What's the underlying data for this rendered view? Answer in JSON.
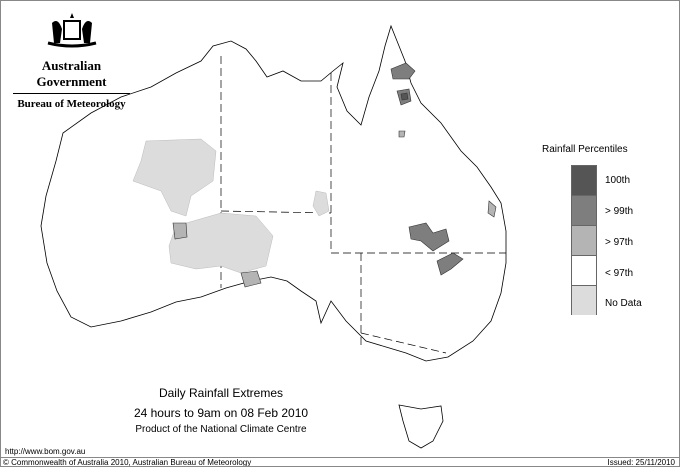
{
  "header": {
    "government": "Australian Government",
    "bureau": "Bureau of Meteorology",
    "logo": "Commonwealth coat of arms"
  },
  "title": {
    "line1": "Daily Rainfall Extremes",
    "line2": "24 hours to 9am on 08 Feb 2010",
    "line3": "Product of the National Climate Centre"
  },
  "legend": {
    "title": "Rainfall Percentiles",
    "items": [
      {
        "label": "100th",
        "color": "#555555"
      },
      {
        "label": "> 99th",
        "color": "#7e7e7e"
      },
      {
        "label": "> 97th",
        "color": "#b4b4b4"
      },
      {
        "label": "< 97th",
        "color": "#ffffff"
      },
      {
        "label": "No Data",
        "color": "#dcdcdc"
      }
    ]
  },
  "footer": {
    "url": "http://www.bom.gov.au",
    "copyright": "© Commonwealth of Australia 2010, Australian Bureau of Meteorology",
    "issued": "Issued: 25/11/2010"
  }
}
